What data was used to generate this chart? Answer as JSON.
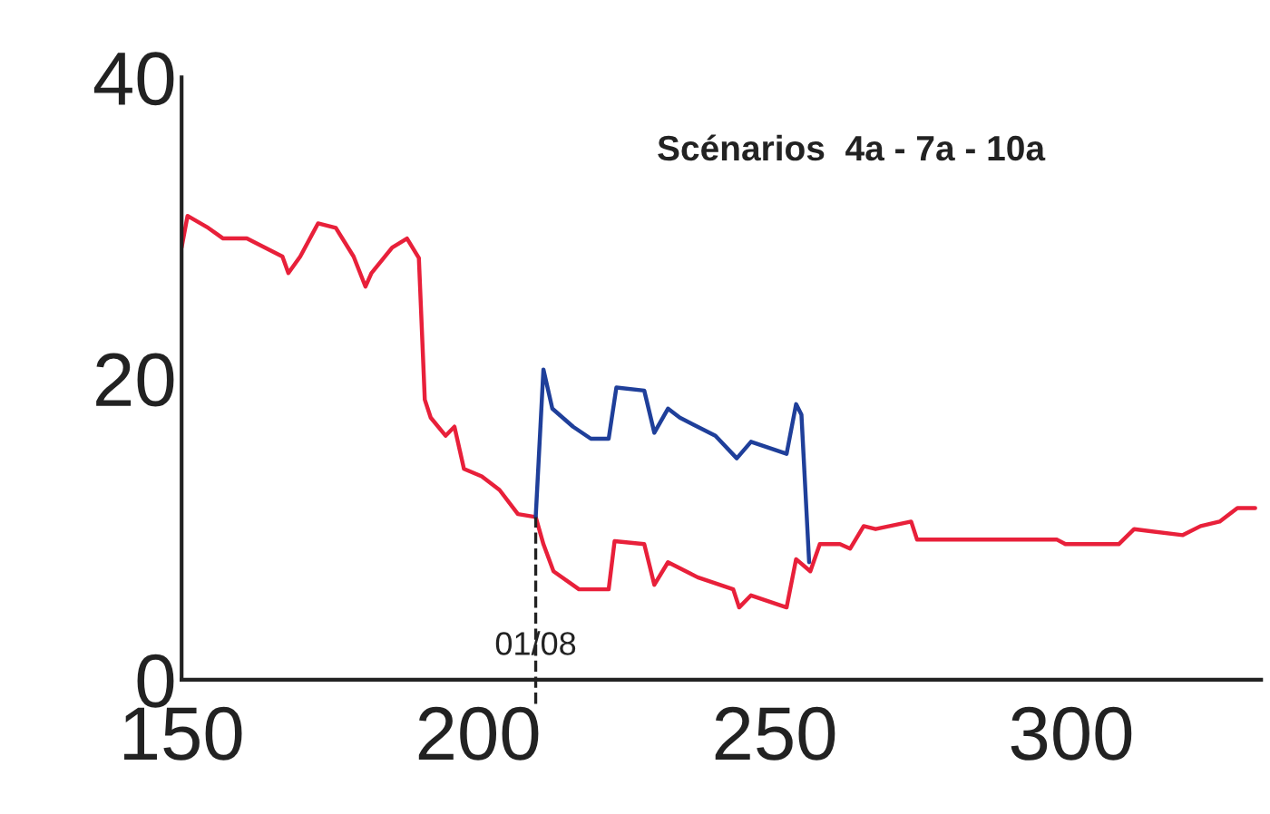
{
  "chart_data": {
    "type": "line",
    "xlim": [
      150,
      332
    ],
    "xticks": [
      150,
      200,
      250,
      300
    ],
    "ylim": [
      0,
      40
    ],
    "yticks": [
      0,
      20,
      40
    ],
    "grid": false,
    "legend": false,
    "marker": "none",
    "line_style": "solid",
    "annotations": [
      "Scénarios  4a - 7a - 10a",
      {
        "text": "01/08",
        "x": 209.7,
        "y": 1.2
      }
    ],
    "ref_lines": [
      {
        "axis": "x",
        "value": 209.7,
        "line_style": "dashed",
        "color": "#222222"
      }
    ],
    "series": [
      {
        "color": "#e8203a",
        "x": [
          150,
          151,
          154.5,
          157,
          161,
          164,
          167,
          168,
          170,
          173,
          176,
          179,
          181,
          182,
          185.5,
          188,
          190,
          191,
          192,
          194.5,
          196,
          197.6,
          200.6,
          203.6,
          206.7,
          209.7,
          211,
          212.7,
          217,
          222,
          223,
          228,
          229.7,
          232,
          237,
          243,
          244,
          246,
          252,
          253.6,
          256,
          257.6,
          261,
          262.7,
          265,
          267,
          273,
          274,
          297.6,
          299,
          308,
          310.6,
          318.8,
          321.8,
          325,
          328,
          331
        ],
        "values": [
          28.7,
          30.8,
          30,
          29.3,
          29.3,
          28.7,
          28.1,
          27,
          28.1,
          30.3,
          30,
          28.1,
          26.1,
          27,
          28.7,
          29.3,
          28,
          18.6,
          17.4,
          16.2,
          16.8,
          14,
          13.5,
          12.6,
          11,
          10.8,
          9,
          7.2,
          6,
          6,
          9.2,
          9,
          6.3,
          7.8,
          6.8,
          6,
          4.8,
          5.6,
          4.8,
          8,
          7.2,
          9,
          9,
          8.7,
          10.2,
          10,
          10.5,
          9.3,
          9.3,
          9,
          9,
          10,
          9.6,
          10.2,
          10.5,
          11.4,
          11.4
        ]
      },
      {
        "color": "#1f3f9a",
        "x": [
          209.7,
          211,
          212.5,
          216,
          219,
          222,
          223.3,
          228,
          229.7,
          232,
          234,
          240,
          243.6,
          246,
          252,
          253.6,
          254.5,
          255.8
        ],
        "values": [
          10.8,
          20.6,
          18,
          16.8,
          16,
          16,
          19.4,
          19.2,
          16.4,
          18,
          17.4,
          16.2,
          14.7,
          15.8,
          15,
          18.3,
          17.6,
          7.8
        ]
      }
    ]
  }
}
